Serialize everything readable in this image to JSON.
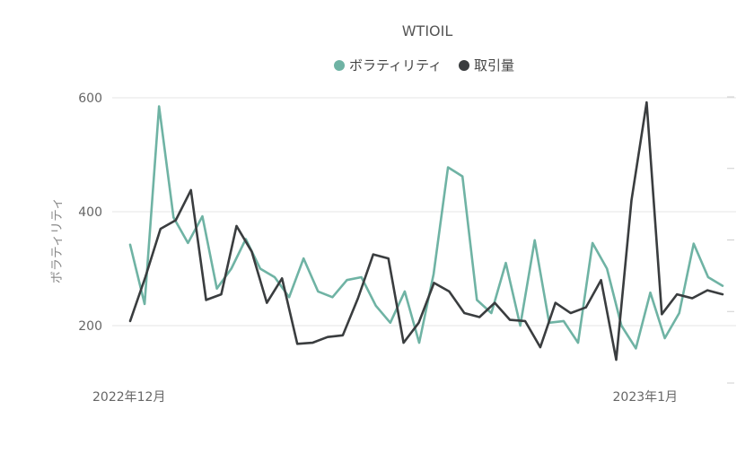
{
  "chart_data": {
    "type": "line",
    "title": "WTIOIL",
    "ylabel": "ボラティリティ",
    "yticks": [
      200,
      400,
      600
    ],
    "ylim": [
      100,
      620
    ],
    "x_tick_labels": [
      "2022年12月",
      "2023年1月"
    ],
    "legend_position": "top-center",
    "colors": {
      "ボラティリティ": "#6fb3a4",
      "取引量": "#3a3d3f"
    },
    "x_index_of_tick_labels": [
      0,
      36
    ],
    "series": [
      {
        "name": "ボラティリティ",
        "color": "#6fb3a4",
        "values": [
          342,
          238,
          585,
          390,
          345,
          392,
          265,
          300,
          352,
          300,
          285,
          250,
          318,
          260,
          250,
          280,
          285,
          235,
          205,
          260,
          170,
          290,
          478,
          462,
          245,
          222,
          310,
          200,
          350,
          205,
          208,
          170,
          345,
          300,
          200,
          160,
          258,
          178,
          222,
          344,
          285,
          270
        ]
      },
      {
        "name": "取引量",
        "color": "#3a3d3f",
        "values": [
          208,
          285,
          370,
          385,
          438,
          245,
          255,
          375,
          330,
          240,
          283,
          168,
          170,
          180,
          183,
          248,
          325,
          318,
          170,
          205,
          275,
          260,
          222,
          215,
          240,
          210,
          208,
          162,
          240,
          222,
          232,
          280,
          140,
          420,
          592,
          220,
          255,
          248,
          262,
          255
        ]
      }
    ]
  }
}
